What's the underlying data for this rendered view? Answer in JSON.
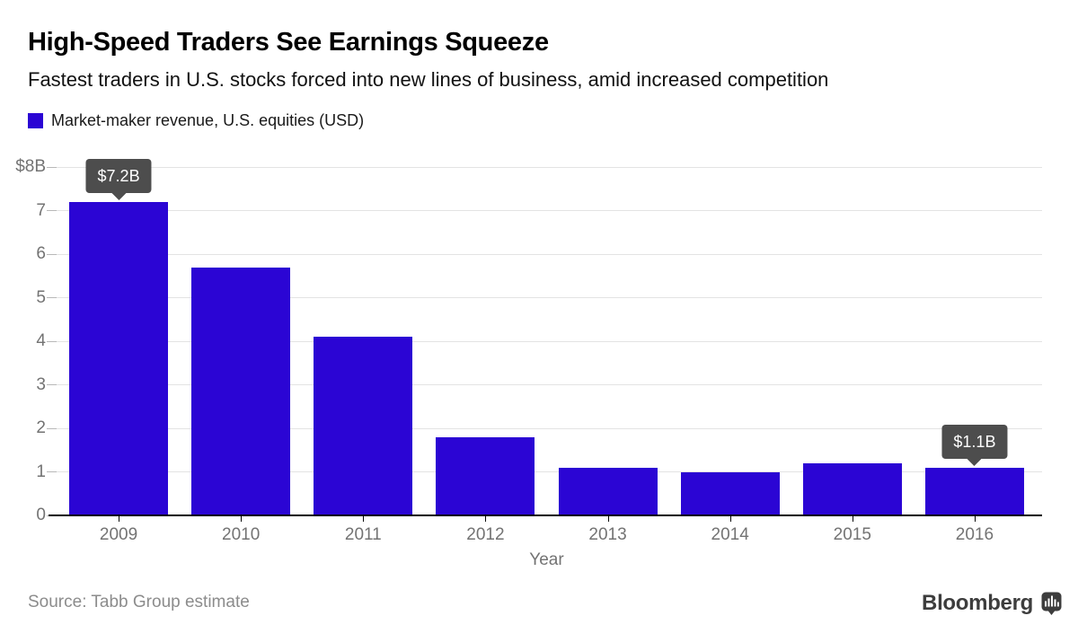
{
  "header": {
    "title": "High-Speed Traders See Earnings Squeeze",
    "subtitle": "Fastest traders in U.S. stocks forced into new lines of business, amid increased competition"
  },
  "legend": {
    "label": "Market-maker revenue, U.S. equities (USD)",
    "swatch_color": "#2b05d4"
  },
  "chart_data": {
    "type": "bar",
    "title": "High-Speed Traders See Earnings Squeeze",
    "subtitle": "Fastest traders in U.S. stocks forced into new lines of business, amid increased competition",
    "series_name": "Market-maker revenue, U.S. equities (USD)",
    "categories": [
      "2009",
      "2010",
      "2011",
      "2012",
      "2013",
      "2014",
      "2015",
      "2016"
    ],
    "values": [
      7.2,
      5.7,
      4.1,
      1.8,
      1.1,
      1.0,
      1.2,
      1.1
    ],
    "xlabel": "Year",
    "ylabel": "",
    "ylim": [
      0,
      8
    ],
    "yticks": [
      0,
      1,
      2,
      3,
      4,
      5,
      6,
      7,
      8
    ],
    "ytick_labels": [
      "0",
      "1",
      "2",
      "3",
      "4",
      "5",
      "6",
      "7",
      "$8B"
    ],
    "grid": true,
    "legend_position": "top-left",
    "bar_color": "#2b05d4",
    "annotations": [
      {
        "category": "2009",
        "value": 7.2,
        "label": "$7.2B"
      },
      {
        "category": "2016",
        "value": 1.1,
        "label": "$1.1B"
      }
    ]
  },
  "footer": {
    "source": "Source: Tabb Group estimate",
    "brand": "Bloomberg",
    "brand_icon": "bloomberg-bars-bubble-icon"
  },
  "colors": {
    "bar": "#2b05d4",
    "callout_bg": "#4d4d4d",
    "callout_text": "#ffffff",
    "gridline": "#e3e3e3",
    "ytick_dash": "#b8b8b8",
    "axis": "#000000",
    "tick_label": "#737373",
    "source_text": "#8c8c8c",
    "brand_text": "#3d3d3d"
  }
}
